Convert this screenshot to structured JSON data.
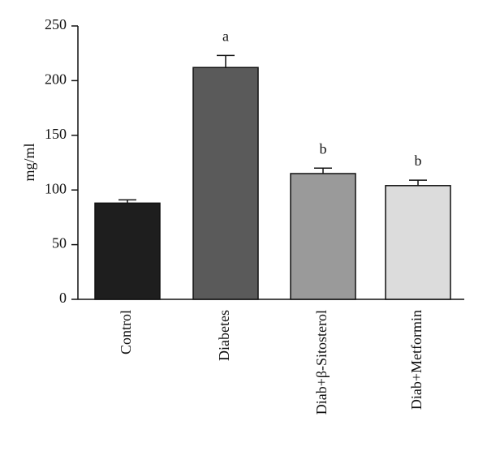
{
  "chart_data": {
    "type": "bar",
    "y_label": "mg/ml",
    "categories": [
      "Control",
      "Diabetes",
      "Diab+β-Sitosterol",
      "Diab+Metformin"
    ],
    "values": [
      88,
      212,
      115,
      104
    ],
    "errors": [
      3,
      11,
      5,
      5
    ],
    "bar_labels": [
      null,
      "a",
      "b",
      "b"
    ],
    "colors": [
      "#1e1e1e",
      "#5a5a5a",
      "#9a9a9a",
      "#dcdcdc"
    ],
    "ylim": [
      0,
      250
    ],
    "yticks": [
      0,
      50,
      100,
      150,
      200,
      250
    ],
    "grid": false
  }
}
